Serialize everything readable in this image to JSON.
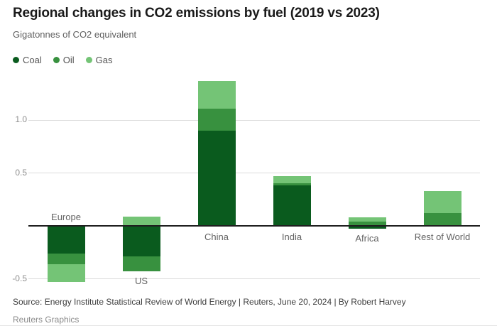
{
  "header": {
    "title": "Regional changes in CO2 emissions by fuel (2019 vs 2023)",
    "subtitle": "Gigatonnes of CO2 equivalent"
  },
  "chart_data": {
    "type": "bar",
    "stacked": true,
    "title": "Regional changes in CO2 emissions by fuel (2019 vs 2023)",
    "ylabel": "Gigatonnes of CO2 equivalent",
    "categories": [
      "Europe",
      "US",
      "China",
      "India",
      "Africa",
      "Rest of World"
    ],
    "series": [
      {
        "name": "Coal",
        "color": "#0a5b1e",
        "values": [
          -0.26,
          -0.29,
          0.9,
          0.38,
          -0.03,
          0
        ]
      },
      {
        "name": "Oil",
        "color": "#38913f",
        "values": [
          -0.1,
          -0.14,
          0.21,
          0.02,
          0.04,
          0.12
        ]
      },
      {
        "name": "Gas",
        "color": "#74c476",
        "values": [
          -0.17,
          0.09,
          0.26,
          0.07,
          0.04,
          0.21
        ]
      }
    ],
    "yticks": [
      {
        "value": 1.0,
        "label": "1.0"
      },
      {
        "value": 0.5,
        "label": "0.5"
      },
      {
        "value": -0.5,
        "label": "-0.5"
      }
    ],
    "ylim": [
      -0.6,
      1.45
    ],
    "grid": true,
    "legend_position": "top-left"
  },
  "footer": {
    "source": "Source: Energy Institute Statistical Review of World Energy | Reuters, June 20, 2024 | By Robert Harvey",
    "credit": "Reuters Graphics"
  }
}
